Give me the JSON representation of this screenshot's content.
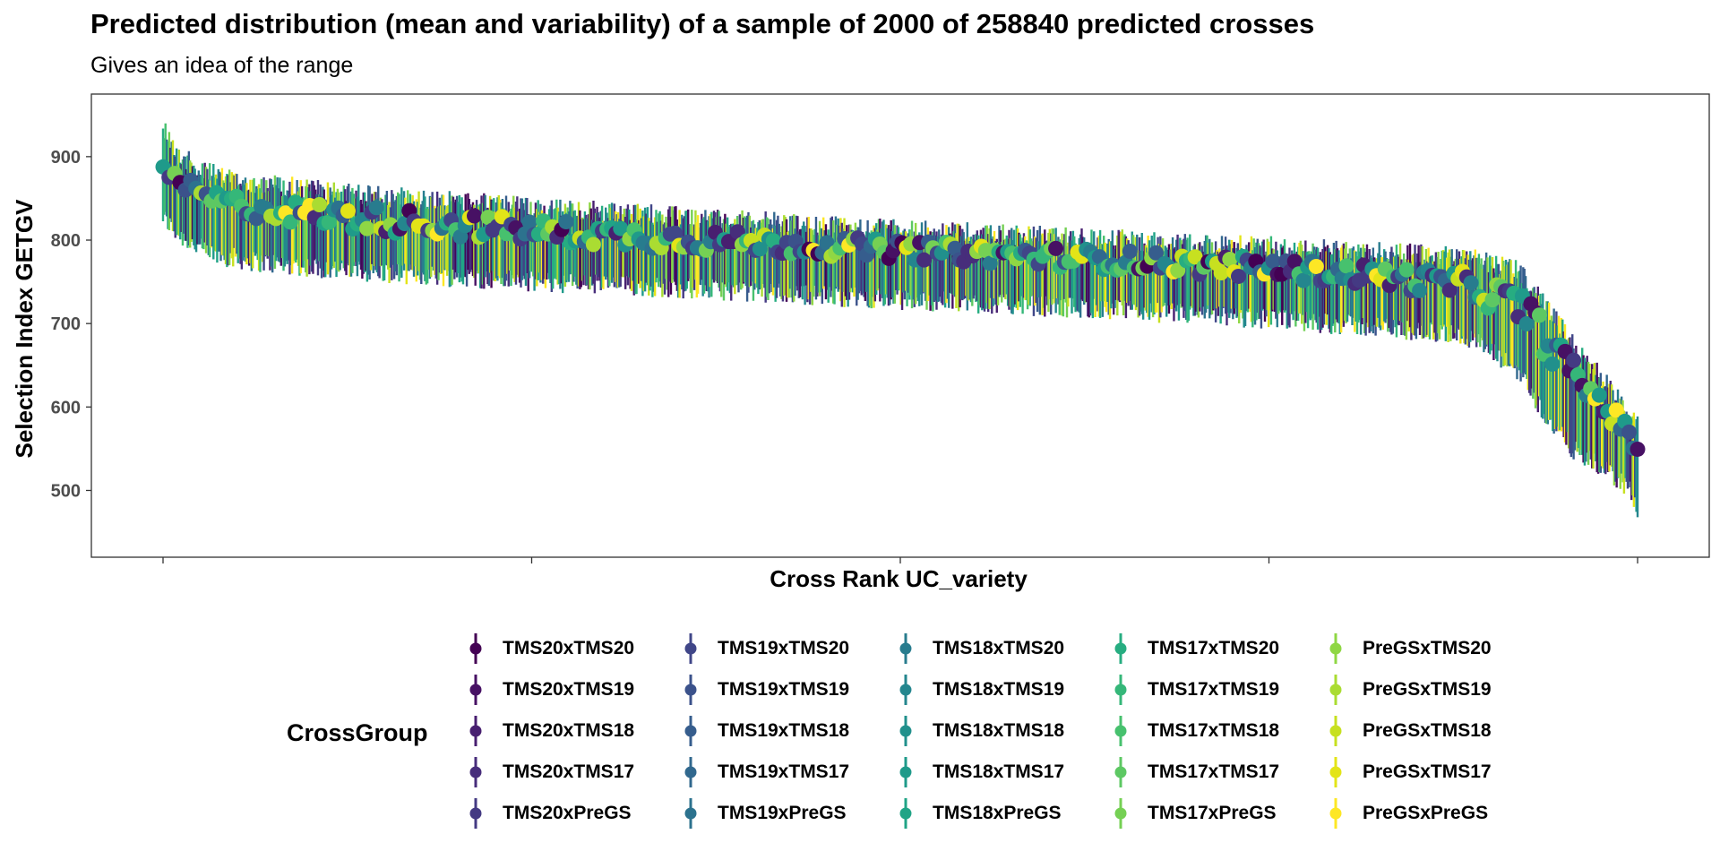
{
  "chart_data": {
    "type": "scatter",
    "title": "Predicted distribution (mean and variability) of a sample of 2000 of 258840 predicted crosses",
    "subtitle": "Gives an idea of the range",
    "xlabel": "Cross Rank UC_variety",
    "ylabel": "Selection Index GETGV",
    "x_tick_labels": [
      "",
      "",
      "",
      "",
      ""
    ],
    "xlim": [
      0,
      2000
    ],
    "ylim": [
      420,
      975
    ],
    "yticks": [
      500,
      600,
      700,
      800,
      900
    ],
    "grid": false,
    "legend_title": "CrossGroup",
    "legend_position": "bottom",
    "series": [
      {
        "name": "TMS20xTMS20",
        "color": "#440154"
      },
      {
        "name": "TMS20xTMS19",
        "color": "#471164"
      },
      {
        "name": "TMS20xTMS18",
        "color": "#481F70"
      },
      {
        "name": "TMS20xTMS17",
        "color": "#472D7B"
      },
      {
        "name": "TMS20xPreGS",
        "color": "#443A83"
      },
      {
        "name": "TMS19xTMS20",
        "color": "#404688"
      },
      {
        "name": "TMS19xTMS19",
        "color": "#3B528B"
      },
      {
        "name": "TMS19xTMS18",
        "color": "#365D8D"
      },
      {
        "name": "TMS19xTMS17",
        "color": "#31688E"
      },
      {
        "name": "TMS19xPreGS",
        "color": "#2C728E"
      },
      {
        "name": "TMS18xTMS20",
        "color": "#287C8E"
      },
      {
        "name": "TMS18xTMS19",
        "color": "#24868E"
      },
      {
        "name": "TMS18xTMS18",
        "color": "#21908C"
      },
      {
        "name": "TMS18xTMS17",
        "color": "#1F9A8A"
      },
      {
        "name": "TMS18xPreGS",
        "color": "#20A486"
      },
      {
        "name": "TMS17xTMS20",
        "color": "#27AD81"
      },
      {
        "name": "TMS17xTMS19",
        "color": "#35B779"
      },
      {
        "name": "TMS17xTMS18",
        "color": "#47C16E"
      },
      {
        "name": "TMS17xTMS17",
        "color": "#5DC863"
      },
      {
        "name": "TMS17xPreGS",
        "color": "#75D054"
      },
      {
        "name": "PreGSxTMS20",
        "color": "#8FD744"
      },
      {
        "name": "PreGSxTMS19",
        "color": "#AADC32"
      },
      {
        "name": "PreGSxTMS18",
        "color": "#C7E020"
      },
      {
        "name": "PreGSxTMS17",
        "color": "#E3E418"
      },
      {
        "name": "PreGSxPreGS",
        "color": "#FDE725"
      }
    ],
    "trend": {
      "x": [
        0,
        20,
        60,
        120,
        250,
        500,
        750,
        1000,
        1250,
        1500,
        1650,
        1770,
        1840,
        1880,
        1920,
        1960,
        1990,
        2000
      ],
      "mean_upper": [
        888,
        880,
        862,
        851,
        843,
        826,
        812,
        800,
        790,
        779,
        770,
        762,
        742,
        700,
        648,
        610,
        576,
        565
      ],
      "mean_lower": [
        875,
        858,
        840,
        826,
        812,
        797,
        786,
        777,
        766,
        754,
        744,
        730,
        700,
        655,
        615,
        585,
        550,
        540
      ],
      "band_top": [
        950,
        915,
        893,
        882,
        868,
        852,
        838,
        825,
        815,
        805,
        798,
        792,
        775,
        730,
        680,
        640,
        600,
        590
      ],
      "band_bottom": [
        815,
        795,
        772,
        762,
        751,
        738,
        728,
        716,
        706,
        693,
        683,
        672,
        630,
        570,
        530,
        510,
        490,
        455
      ]
    }
  }
}
